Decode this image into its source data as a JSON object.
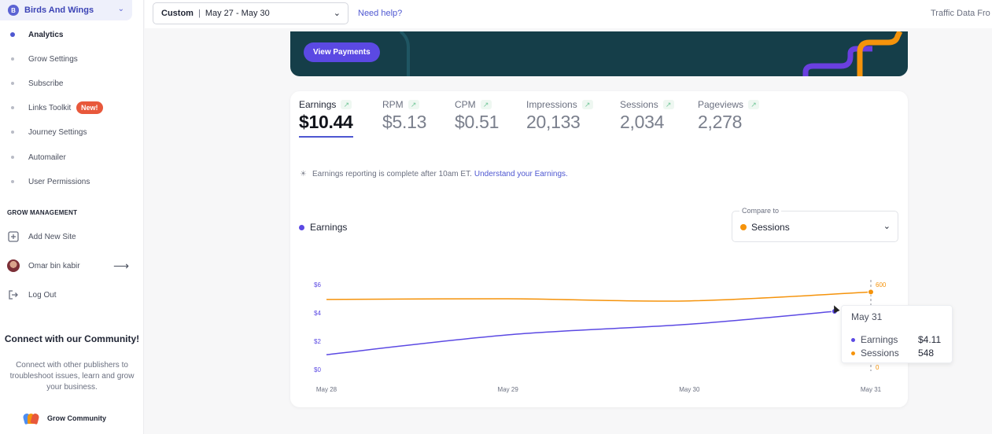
{
  "sidebar": {
    "site_badge": "B",
    "site_name": "Birds And Wings",
    "nav": [
      {
        "label": "Analytics",
        "active": true
      },
      {
        "label": "Grow Settings"
      },
      {
        "label": "Subscribe"
      },
      {
        "label": "Links Toolkit",
        "badge": "New!"
      },
      {
        "label": "Journey Settings"
      },
      {
        "label": "Automailer"
      },
      {
        "label": "User Permissions"
      }
    ],
    "section_title": "GROW MANAGEMENT",
    "add_site": "Add New Site",
    "user_name": "Omar bin kabir",
    "logout": "Log Out",
    "community_title": "Connect with our Community!",
    "community_desc": "Connect with other publishers to troubleshoot issues, learn and grow your business.",
    "community_link": "Grow Community"
  },
  "topbar": {
    "date_preset": "Custom",
    "date_range": "May 27 - May 30",
    "help": "Need help?",
    "traffic": "Traffic Data Fro"
  },
  "banner": {
    "button": "View Payments"
  },
  "metrics": [
    {
      "label": "Earnings",
      "value": "$10.44",
      "active": true
    },
    {
      "label": "RPM",
      "value": "$5.13"
    },
    {
      "label": "CPM",
      "value": "$0.51"
    },
    {
      "label": "Impressions",
      "value": "20,133"
    },
    {
      "label": "Sessions",
      "value": "2,034"
    },
    {
      "label": "Pageviews",
      "value": "2,278"
    }
  ],
  "note": {
    "text": "Earnings reporting is complete after 10am ET.",
    "link": "Understand your Earnings."
  },
  "legend_primary": "Earnings",
  "compare": {
    "label": "Compare to",
    "value": "Sessions"
  },
  "colors": {
    "earnings": "#5b49e3",
    "sessions": "#f5930b",
    "accent": "#4e57d1"
  },
  "chart_data": {
    "type": "line",
    "categories": [
      "May 28",
      "May 29",
      "May 30",
      "May 31"
    ],
    "series": [
      {
        "name": "Earnings",
        "axis": "left",
        "x": [
          0,
          1,
          2,
          2.8
        ],
        "values": [
          1.05,
          2.45,
          3.2,
          4.11
        ]
      },
      {
        "name": "Sessions",
        "axis": "right",
        "x": [
          0,
          1,
          2,
          3
        ],
        "values": [
          495,
          500,
          485,
          548
        ]
      }
    ],
    "left_axis": {
      "ticks": [
        "$0",
        "$2",
        "$4",
        "$6"
      ],
      "ylim": [
        0,
        6
      ]
    },
    "right_axis": {
      "ticks": [
        "0",
        "600"
      ],
      "ylim": [
        0,
        600
      ]
    },
    "tooltip": {
      "title": "May 31",
      "rows": [
        {
          "name": "Earnings",
          "value": "$4.11"
        },
        {
          "name": "Sessions",
          "value": "548"
        }
      ]
    }
  }
}
